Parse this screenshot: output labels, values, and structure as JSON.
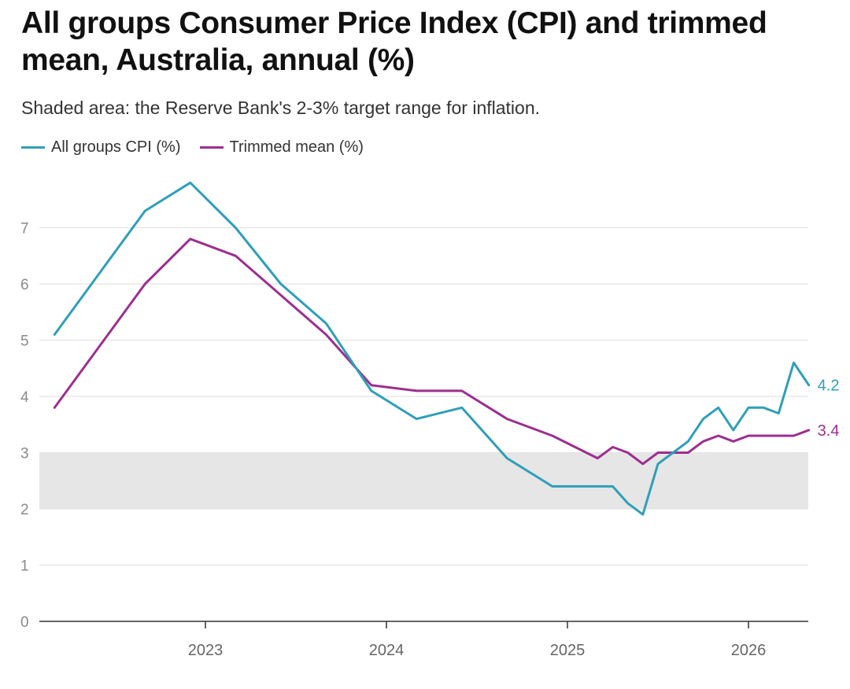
{
  "title": "All groups Consumer Price Index (CPI) and trimmed mean, Australia, annual (%)",
  "subtitle": "Shaded area: the Reserve Bank's 2-3% target range for inflation.",
  "chart_data": {
    "type": "line",
    "title": "All groups Consumer Price Index (CPI) and trimmed mean, Australia, annual (%)",
    "subtitle": "Shaded area: the Reserve Bank's 2-3% target range for inflation.",
    "xlabel": "",
    "ylabel": "",
    "ylim": [
      0,
      8
    ],
    "y_ticks": [
      0,
      1,
      2,
      3,
      4,
      5,
      6,
      7
    ],
    "x_ticks": [
      "2023",
      "2024",
      "2025",
      "2026"
    ],
    "grid": true,
    "legend_position": "top-left",
    "shaded_band": {
      "from": 2,
      "to": 3,
      "color": "#e6e6e6"
    },
    "series": [
      {
        "name": "All groups CPI (%)",
        "color": "#2f9fb8",
        "end_label": "4.2",
        "points": [
          [
            "2022-03",
            5.1
          ],
          [
            "2022-09",
            7.3
          ],
          [
            "2022-12",
            7.8
          ],
          [
            "2023-03",
            7.0
          ],
          [
            "2023-06",
            6.0
          ],
          [
            "2023-09",
            5.3
          ],
          [
            "2023-12",
            4.1
          ],
          [
            "2024-03",
            3.6
          ],
          [
            "2024-06",
            3.8
          ],
          [
            "2024-09",
            2.9
          ],
          [
            "2024-12",
            2.4
          ],
          [
            "2025-03",
            2.4
          ],
          [
            "2025-04",
            2.4
          ],
          [
            "2025-05",
            2.1
          ],
          [
            "2025-06",
            1.9
          ],
          [
            "2025-07",
            2.8
          ],
          [
            "2025-08",
            3.0
          ],
          [
            "2025-09",
            3.2
          ],
          [
            "2025-10",
            3.6
          ],
          [
            "2025-11",
            3.8
          ],
          [
            "2025-12",
            3.4
          ],
          [
            "2026-01",
            3.8
          ],
          [
            "2026-02",
            3.8
          ],
          [
            "2026-03",
            3.7
          ],
          [
            "2026-04",
            4.6
          ],
          [
            "2026-05",
            4.2
          ]
        ]
      },
      {
        "name": "Trimmed mean (%)",
        "color": "#9c2f8f",
        "end_label": "3.4",
        "points": [
          [
            "2022-03",
            3.8
          ],
          [
            "2022-09",
            6.0
          ],
          [
            "2022-12",
            6.8
          ],
          [
            "2023-03",
            6.5
          ],
          [
            "2023-06",
            5.8
          ],
          [
            "2023-09",
            5.1
          ],
          [
            "2023-12",
            4.2
          ],
          [
            "2024-03",
            4.1
          ],
          [
            "2024-06",
            4.1
          ],
          [
            "2024-09",
            3.6
          ],
          [
            "2024-12",
            3.3
          ],
          [
            "2025-03",
            2.9
          ],
          [
            "2025-04",
            3.1
          ],
          [
            "2025-05",
            3.0
          ],
          [
            "2025-06",
            2.8
          ],
          [
            "2025-07",
            3.0
          ],
          [
            "2025-08",
            3.0
          ],
          [
            "2025-09",
            3.0
          ],
          [
            "2025-10",
            3.2
          ],
          [
            "2025-11",
            3.3
          ],
          [
            "2025-12",
            3.2
          ],
          [
            "2026-01",
            3.3
          ],
          [
            "2026-02",
            3.3
          ],
          [
            "2026-03",
            3.3
          ],
          [
            "2026-04",
            3.3
          ],
          [
            "2026-05",
            3.4
          ]
        ]
      }
    ]
  },
  "colors": {
    "cpi": "#2f9fb8",
    "trimmed_mean": "#9c2f8f",
    "band": "#e6e6e6",
    "grid": "#e3e3e3",
    "axis_text": "#8a8a8a"
  }
}
